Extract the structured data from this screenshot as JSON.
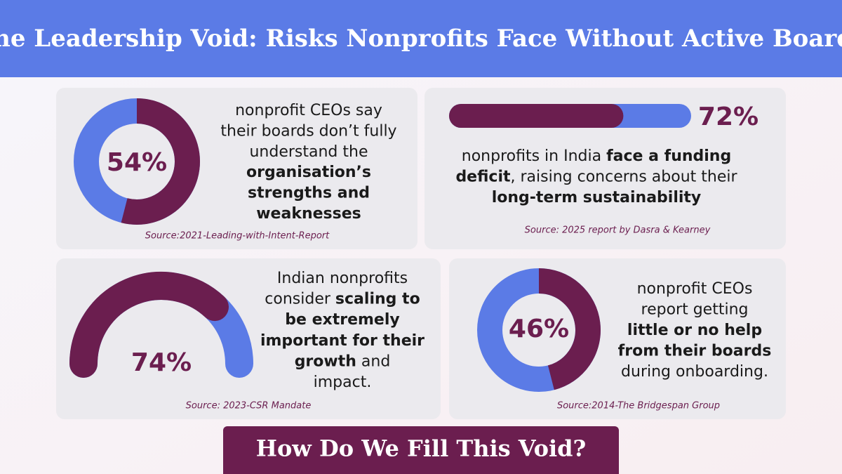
{
  "title": "The Leadership Void: Risks Nonprofits Face Without Active Boards",
  "footer": "How Do We Fill This Void?",
  "chart_data": [
    {
      "type": "donut",
      "values": [
        54
      ],
      "value_labels": [
        "54%"
      ],
      "color": "#6b1e4f",
      "track_color": "#5b7be6",
      "lines": [
        [
          {
            "text": "nonprofit CEOs say",
            "bold": false
          }
        ],
        [
          {
            "text": "their boards don’t fully",
            "bold": false
          }
        ],
        [
          {
            "text": "understand the",
            "bold": false
          }
        ],
        [
          {
            "text": "organisation’s",
            "bold": true
          }
        ],
        [
          {
            "text": "strengths and",
            "bold": true
          }
        ],
        [
          {
            "text": "weaknesses",
            "bold": true
          }
        ]
      ],
      "source": "Source:2021-Leading-with-Intent-Report"
    },
    {
      "type": "progress",
      "values": [
        72
      ],
      "value_labels": [
        "72%"
      ],
      "color": "#6b1e4f",
      "track_color": "#5b7be6",
      "lines": [
        [
          {
            "text": "nonprofits in India ",
            "bold": false
          },
          {
            "text": "face a funding",
            "bold": true
          }
        ],
        [
          {
            "text": "deficit",
            "bold": true
          },
          {
            "text": ", raising concerns about their",
            "bold": false
          }
        ],
        [
          {
            "text": "long-term sustainability",
            "bold": true
          }
        ]
      ],
      "source": "Source: 2025 report by Dasra & Kearney"
    },
    {
      "type": "gauge",
      "values": [
        74
      ],
      "value_labels": [
        "74%"
      ],
      "color": "#6b1e4f",
      "track_color": "#5b7be6",
      "lines": [
        [
          {
            "text": "Indian nonprofits",
            "bold": false
          }
        ],
        [
          {
            "text": "consider ",
            "bold": false
          },
          {
            "text": "scaling to",
            "bold": true
          }
        ],
        [
          {
            "text": "be extremely",
            "bold": true
          }
        ],
        [
          {
            "text": "important for their",
            "bold": true
          }
        ],
        [
          {
            "text": "growth",
            "bold": true
          },
          {
            "text": " and",
            "bold": false
          }
        ],
        [
          {
            "text": "impact.",
            "bold": false
          }
        ]
      ],
      "source": "Source: 2023-CSR Mandate"
    },
    {
      "type": "donut",
      "values": [
        46
      ],
      "value_labels": [
        "46%"
      ],
      "color": "#6b1e4f",
      "track_color": "#5b7be6",
      "lines": [
        [
          {
            "text": "nonprofit CEOs",
            "bold": false
          }
        ],
        [
          {
            "text": "report getting",
            "bold": false
          }
        ],
        [
          {
            "text": "little or no help",
            "bold": true
          }
        ],
        [
          {
            "text": "from their boards",
            "bold": true
          }
        ],
        [
          {
            "text": "during onboarding.",
            "bold": false
          }
        ]
      ],
      "source": "Source:2014-The Bridgespan Group"
    }
  ]
}
